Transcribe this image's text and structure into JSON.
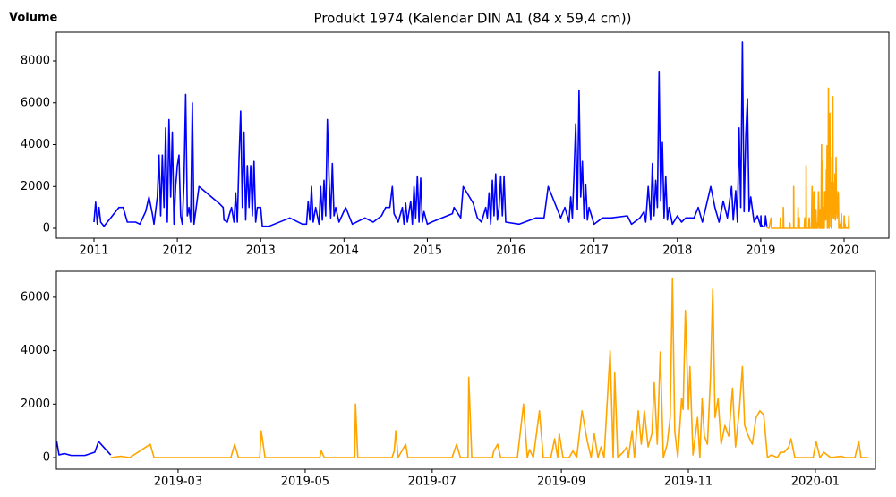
{
  "chart_data": [
    {
      "type": "line",
      "title": "Produkt 1974 (Kalendar DIN A1 (84 x 59,4 cm))",
      "annotation": "Volume",
      "xlim": [
        2010.549,
        2020.537
      ],
      "ylim": [
        -470,
        9369
      ],
      "xticks": [
        2011,
        2012,
        2013,
        2014,
        2015,
        2016,
        2017,
        2018,
        2019,
        2020
      ],
      "yticks": [
        0,
        2000,
        4000,
        6000,
        8000
      ],
      "series": [
        {
          "color": "#0000ff",
          "x": [
            2011.0,
            2011.02,
            2011.04,
            2011.06,
            2011.08,
            2011.12,
            2011.2,
            2011.3,
            2011.35,
            2011.4,
            2011.5,
            2011.55,
            2011.62,
            2011.66,
            2011.7,
            2011.72,
            2011.76,
            2011.78,
            2011.8,
            2011.82,
            2011.84,
            2011.86,
            2011.88,
            2011.9,
            2011.92,
            2011.94,
            2011.96,
            2011.98,
            2012.0,
            2012.02,
            2012.04,
            2012.06,
            2012.08,
            2012.1,
            2012.12,
            2012.14,
            2012.16,
            2012.18,
            2012.2,
            2012.26,
            2012.5,
            2012.55,
            2012.56,
            2012.6,
            2012.62,
            2012.65,
            2012.68,
            2012.7,
            2012.72,
            2012.74,
            2012.76,
            2012.78,
            2012.8,
            2012.82,
            2012.84,
            2012.86,
            2012.88,
            2012.9,
            2012.92,
            2012.94,
            2012.96,
            2013.0,
            2013.02,
            2013.1,
            2013.35,
            2013.5,
            2013.55,
            2013.57,
            2013.59,
            2013.61,
            2013.63,
            2013.66,
            2013.7,
            2013.72,
            2013.74,
            2013.76,
            2013.78,
            2013.8,
            2013.82,
            2013.84,
            2013.86,
            2013.88,
            2013.9,
            2013.94,
            2014.02,
            2014.1,
            2014.25,
            2014.35,
            2014.45,
            2014.5,
            2014.55,
            2014.58,
            2014.6,
            2014.65,
            2014.7,
            2014.72,
            2014.74,
            2014.76,
            2014.8,
            2014.82,
            2014.84,
            2014.86,
            2014.88,
            2014.9,
            2014.92,
            2014.94,
            2014.96,
            2015.0,
            2015.05,
            2015.3,
            2015.32,
            2015.4,
            2015.43,
            2015.55,
            2015.6,
            2015.65,
            2015.7,
            2015.72,
            2015.74,
            2015.76,
            2015.78,
            2015.8,
            2015.82,
            2015.84,
            2015.86,
            2015.88,
            2015.9,
            2015.92,
            2015.94,
            2016.1,
            2016.3,
            2016.4,
            2016.45,
            2016.55,
            2016.6,
            2016.65,
            2016.7,
            2016.72,
            2016.74,
            2016.76,
            2016.78,
            2016.8,
            2016.82,
            2016.84,
            2016.86,
            2016.88,
            2016.9,
            2016.92,
            2016.94,
            2017.0,
            2017.1,
            2017.2,
            2017.4,
            2017.45,
            2017.55,
            2017.6,
            2017.62,
            2017.65,
            2017.68,
            2017.7,
            2017.72,
            2017.74,
            2017.76,
            2017.78,
            2017.8,
            2017.82,
            2017.84,
            2017.86,
            2017.88,
            2017.9,
            2017.94,
            2018.0,
            2018.05,
            2018.1,
            2018.2,
            2018.25,
            2018.3,
            2018.4,
            2018.45,
            2018.5,
            2018.55,
            2018.6,
            2018.65,
            2018.67,
            2018.7,
            2018.72,
            2018.74,
            2018.76,
            2018.78,
            2018.8,
            2018.82,
            2018.84,
            2018.86,
            2018.88,
            2018.92,
            2018.96,
            2019.0,
            2019.002,
            2019.005,
            2019.012,
            2019.021,
            2019.039,
            2019.052,
            2019.057,
            2019.073
          ],
          "values": [
            300,
            1250,
            200,
            1000,
            300,
            100,
            500,
            1000,
            1000,
            300,
            300,
            200,
            800,
            1500,
            700,
            200,
            1500,
            3500,
            600,
            3500,
            1000,
            4800,
            300,
            5200,
            1500,
            4600,
            200,
            2000,
            3000,
            3500,
            600,
            200,
            2200,
            6400,
            600,
            1000,
            300,
            6000,
            200,
            2000,
            1200,
            1000,
            400,
            300,
            600,
            1000,
            300,
            1700,
            300,
            3300,
            5600,
            1000,
            4600,
            400,
            3000,
            1000,
            3000,
            600,
            3200,
            300,
            1000,
            1000,
            100,
            100,
            500,
            200,
            200,
            1300,
            400,
            2000,
            300,
            1000,
            200,
            2000,
            400,
            2300,
            600,
            5200,
            2400,
            500,
            3100,
            600,
            1000,
            300,
            1000,
            200,
            500,
            300,
            600,
            1000,
            1000,
            2000,
            700,
            300,
            1000,
            200,
            1200,
            300,
            1300,
            200,
            2000,
            500,
            2500,
            300,
            2400,
            300,
            800,
            200,
            300,
            700,
            1000,
            500,
            2000,
            1200,
            500,
            300,
            1000,
            500,
            1700,
            200,
            2300,
            600,
            2600,
            400,
            1000,
            2500,
            600,
            2500,
            300,
            200,
            500,
            500,
            2000,
            1000,
            500,
            1000,
            300,
            1500,
            500,
            2600,
            5000,
            900,
            6600,
            1500,
            3200,
            500,
            2100,
            400,
            1000,
            200,
            500,
            500,
            600,
            200,
            500,
            800,
            300,
            2000,
            400,
            3100,
            600,
            2300,
            1000,
            7500,
            1300,
            4100,
            500,
            2500,
            400,
            1000,
            200,
            600,
            300,
            500,
            500,
            1000,
            300,
            2000,
            1000,
            300,
            1300,
            500,
            2000,
            400,
            1800,
            300,
            4800,
            1000,
            8900,
            800,
            4400,
            6200,
            800,
            1500,
            300,
            600,
            100,
            600,
            100,
            150,
            80,
            80,
            200,
            600,
            100
          ]
        },
        {
          "color": "#ffa500",
          "x": [
            2019.073,
            2019.086,
            2019.098,
            2019.125,
            2019.13,
            2019.231,
            2019.236,
            2019.241,
            2019.269,
            2019.271,
            2019.276,
            2019.348,
            2019.35,
            2019.354,
            2019.394,
            2019.395,
            2019.398,
            2019.443,
            2019.446,
            2019.448,
            2019.451,
            2019.461,
            2019.464,
            2019.522,
            2019.528,
            2019.533,
            2019.543,
            2019.544,
            2019.548,
            2019.575,
            2019.577,
            2019.582,
            2019.586,
            2019.608,
            2019.616,
            2019.621,
            2019.624,
            2019.629,
            2019.637,
            2019.642,
            2019.652,
            2019.657,
            2019.661,
            2019.663,
            2019.668,
            2019.676,
            2019.681,
            2019.686,
            2019.693,
            2019.7,
            2019.705,
            2019.709,
            2019.714,
            2019.718,
            2019.722,
            2019.73,
            2019.734,
            2019.736,
            2019.74,
            2019.747,
            2019.752,
            2019.754,
            2019.759,
            2019.762,
            2019.767,
            2019.771,
            2019.775,
            2019.78,
            2019.785,
            2019.788,
            2019.792,
            2019.796,
            2019.8,
            2019.805,
            2019.809,
            2019.812,
            2019.815,
            2019.819,
            2019.824,
            2019.826,
            2019.829,
            2019.833,
            2019.835,
            2019.839,
            2019.845,
            2019.848,
            2019.851,
            2019.854,
            2019.858,
            2019.862,
            2019.865,
            2019.868,
            2019.872,
            2019.876,
            2019.881,
            2019.886,
            2019.891,
            2019.895,
            2019.9,
            2019.904,
            2019.907,
            2019.912,
            2019.917,
            2019.922,
            2019.927,
            2019.932,
            2019.937,
            2019.942,
            2019.95,
            2019.954,
            2019.959,
            2019.965,
            2019.968,
            2019.973,
            2019.997,
            2020.001,
            2020.006,
            2020.011,
            2020.02,
            2020.034,
            2020.039,
            2020.052,
            2020.057,
            2020.06,
            2020.07
          ],
          "values": [
            0,
            50,
            0,
            500,
            0,
            0,
            500,
            0,
            0,
            1000,
            0,
            0,
            250,
            0,
            0,
            2000,
            0,
            0,
            250,
            1000,
            0,
            500,
            0,
            0,
            500,
            0,
            0,
            3000,
            0,
            0,
            250,
            500,
            0,
            0,
            2000,
            0,
            300,
            0,
            1750,
            0,
            0,
            700,
            0,
            900,
            0,
            0,
            250,
            0,
            1750,
            600,
            0,
            900,
            0,
            400,
            0,
            4000,
            0,
            3200,
            0,
            200,
            400,
            0,
            1000,
            0,
            1750,
            500,
            1750,
            400,
            900,
            2800,
            500,
            3950,
            0,
            500,
            1500,
            6700,
            1000,
            0,
            2200,
            1800,
            5500,
            1800,
            3400,
            100,
            1500,
            0,
            2200,
            800,
            500,
            3000,
            6300,
            1500,
            2200,
            500,
            1200,
            800,
            2600,
            400,
            1800,
            3400,
            1200,
            800,
            500,
            1500,
            1750,
            1600,
            0,
            100,
            0,
            200,
            200,
            400,
            700,
            0,
            0,
            600,
            0,
            200,
            0,
            50,
            0,
            0,
            600,
            0,
            0
          ]
        }
      ]
    },
    {
      "type": "line",
      "xlim": [
        2019.0015,
        2020.079
      ],
      "ylim": [
        -435,
        6968
      ],
      "xticks": [
        {
          "value": 2019.1616,
          "label": "2019-03"
        },
        {
          "value": 2019.3288,
          "label": "2019-05"
        },
        {
          "value": 2019.4959,
          "label": "2019-07"
        },
        {
          "value": 2019.6658,
          "label": "2019-09"
        },
        {
          "value": 2019.8329,
          "label": "2019-11"
        },
        {
          "value": 2020.0,
          "label": "2020-01"
        }
      ],
      "yticks": [
        0,
        2000,
        4000,
        6000
      ],
      "series": [
        {
          "color": "#0000ff",
          "x": [
            2019.002,
            2019.005,
            2019.012,
            2019.021,
            2019.039,
            2019.052,
            2019.057,
            2019.073
          ],
          "values": [
            600,
            100,
            150,
            80,
            80,
            200,
            600,
            100
          ]
        },
        {
          "color": "#ffa500",
          "x": [
            2019.073,
            2019.086,
            2019.098,
            2019.125,
            2019.13,
            2019.231,
            2019.236,
            2019.241,
            2019.269,
            2019.271,
            2019.276,
            2019.348,
            2019.35,
            2019.354,
            2019.394,
            2019.395,
            2019.398,
            2019.443,
            2019.446,
            2019.448,
            2019.451,
            2019.461,
            2019.464,
            2019.522,
            2019.528,
            2019.533,
            2019.543,
            2019.544,
            2019.548,
            2019.575,
            2019.577,
            2019.582,
            2019.586,
            2019.608,
            2019.616,
            2019.621,
            2019.624,
            2019.629,
            2019.637,
            2019.642,
            2019.652,
            2019.657,
            2019.661,
            2019.663,
            2019.668,
            2019.676,
            2019.681,
            2019.686,
            2019.693,
            2019.7,
            2019.705,
            2019.709,
            2019.714,
            2019.718,
            2019.722,
            2019.73,
            2019.734,
            2019.736,
            2019.74,
            2019.747,
            2019.752,
            2019.754,
            2019.759,
            2019.762,
            2019.767,
            2019.771,
            2019.775,
            2019.78,
            2019.785,
            2019.788,
            2019.792,
            2019.796,
            2019.8,
            2019.805,
            2019.809,
            2019.812,
            2019.815,
            2019.819,
            2019.824,
            2019.826,
            2019.829,
            2019.833,
            2019.835,
            2019.839,
            2019.845,
            2019.848,
            2019.851,
            2019.854,
            2019.858,
            2019.862,
            2019.865,
            2019.868,
            2019.872,
            2019.876,
            2019.881,
            2019.886,
            2019.891,
            2019.895,
            2019.9,
            2019.904,
            2019.907,
            2019.912,
            2019.917,
            2019.922,
            2019.927,
            2019.932,
            2019.937,
            2019.942,
            2019.95,
            2019.954,
            2019.959,
            2019.965,
            2019.968,
            2019.973,
            2019.997,
            2020.001,
            2020.006,
            2020.011,
            2020.02,
            2020.034,
            2020.039,
            2020.052,
            2020.057,
            2020.06,
            2020.07
          ],
          "values": [
            0,
            50,
            0,
            500,
            0,
            0,
            500,
            0,
            0,
            1000,
            0,
            0,
            250,
            0,
            0,
            2000,
            0,
            0,
            250,
            1000,
            0,
            500,
            0,
            0,
            500,
            0,
            0,
            3000,
            0,
            0,
            250,
            500,
            0,
            0,
            2000,
            0,
            300,
            0,
            1750,
            0,
            0,
            700,
            0,
            900,
            0,
            0,
            250,
            0,
            1750,
            600,
            0,
            900,
            0,
            400,
            0,
            4000,
            0,
            3200,
            0,
            200,
            400,
            0,
            1000,
            0,
            1750,
            500,
            1750,
            400,
            900,
            2800,
            500,
            3950,
            0,
            500,
            1500,
            6700,
            1000,
            0,
            2200,
            1800,
            5500,
            1800,
            3400,
            100,
            1500,
            0,
            2200,
            800,
            500,
            3000,
            6300,
            1500,
            2200,
            500,
            1200,
            800,
            2600,
            400,
            1800,
            3400,
            1200,
            800,
            500,
            1500,
            1750,
            1600,
            0,
            100,
            0,
            200,
            200,
            400,
            700,
            0,
            0,
            600,
            0,
            200,
            0,
            50,
            0,
            0,
            600,
            0,
            0
          ]
        }
      ]
    }
  ]
}
